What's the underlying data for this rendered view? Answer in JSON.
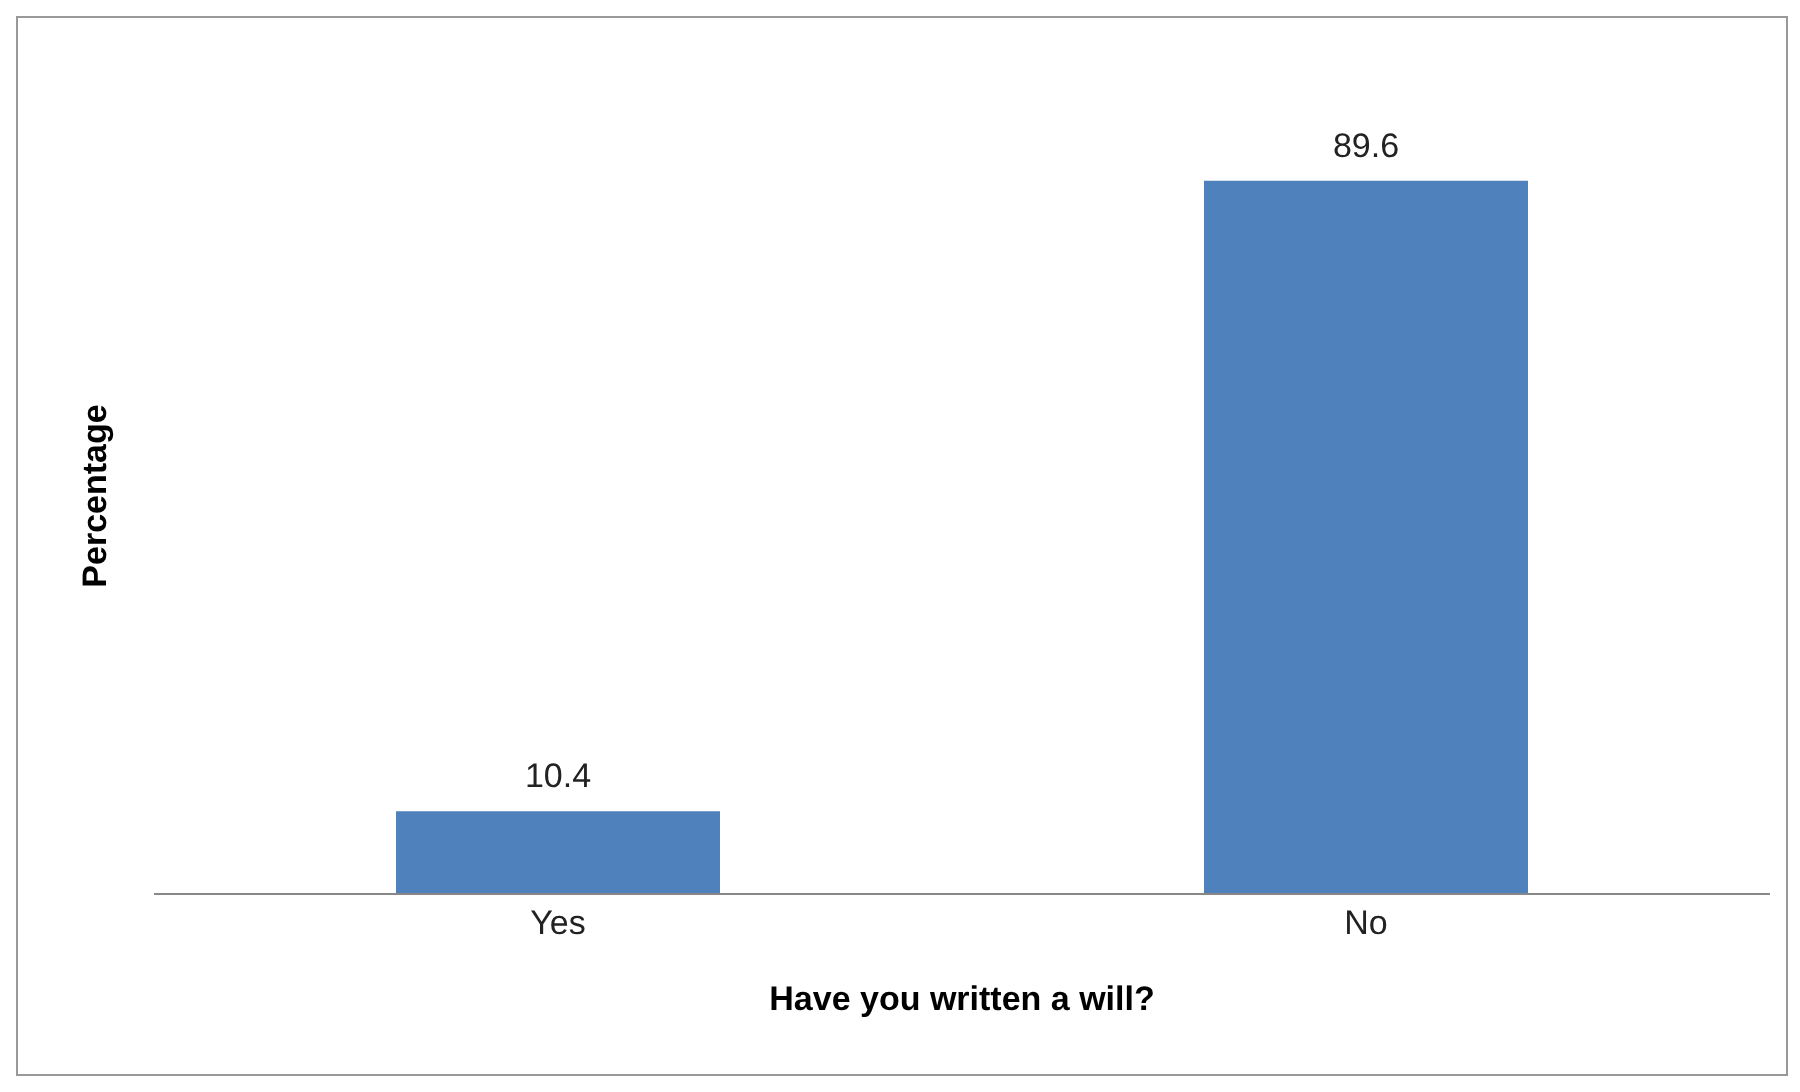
{
  "chart_data": {
    "type": "bar",
    "xlabel": "Have you written a will?",
    "ylabel": "Percentage",
    "categories": [
      "Yes",
      "No"
    ],
    "values": [
      10.4,
      89.6
    ],
    "color": "#4f81bd",
    "data_labels": true
  }
}
